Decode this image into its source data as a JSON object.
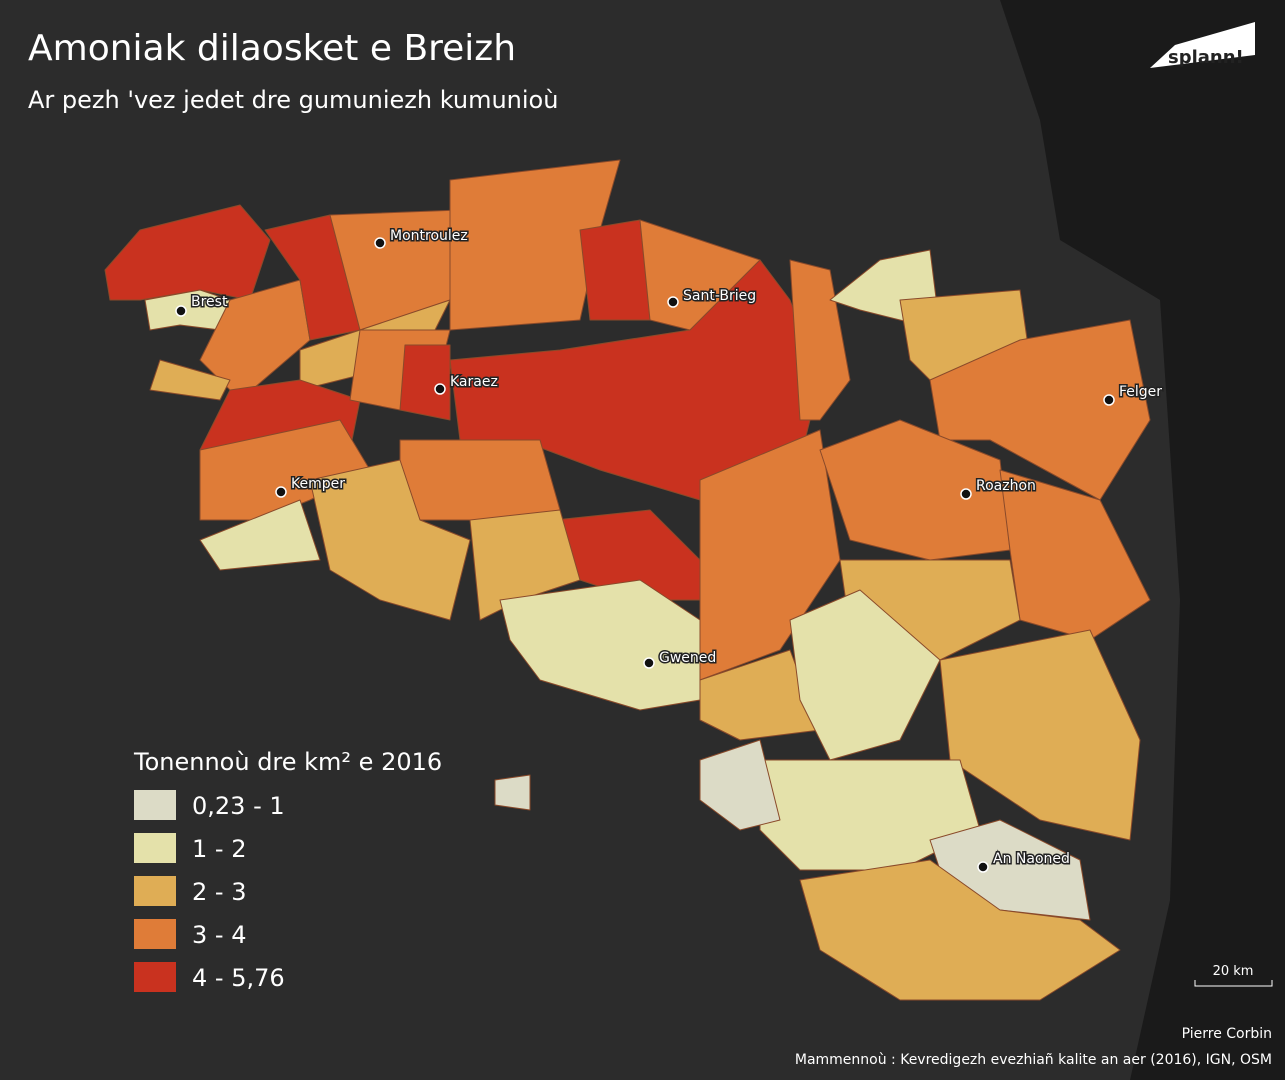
{
  "header": {
    "title": "Amoniak dilaosket e Breizh",
    "subtitle": "Ar pezh 'vez jedet dre gumuniezh kumunioù",
    "logo": "splann!"
  },
  "legend": {
    "title": "Tonennoù dre km² e 2016",
    "items": [
      {
        "label": "0,23 - 1",
        "color": "#dcdbc6"
      },
      {
        "label": "1 - 2",
        "color": "#e4e1aa"
      },
      {
        "label": "2 - 3",
        "color": "#dfad55"
      },
      {
        "label": "3 - 4",
        "color": "#df7c38"
      },
      {
        "label": "4 - 5,76",
        "color": "#c9321f"
      }
    ]
  },
  "cities": [
    "Brest",
    "Montroulez",
    "Sant-Brieg",
    "Karaez",
    "Felger",
    "Kemper",
    "Roazhon",
    "Gwened",
    "An Naoned"
  ],
  "scale": "20 km",
  "credits": {
    "author": "Pierre Corbin",
    "sources": "Mammennoù : Kevredigezh evezhiañ kalite an aer (2016), IGN, OSM"
  }
}
